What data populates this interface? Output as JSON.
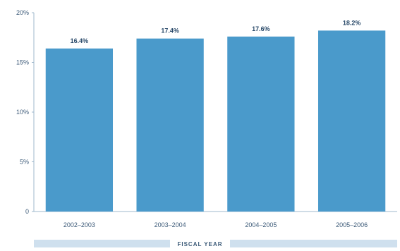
{
  "chart_data": {
    "type": "bar",
    "categories": [
      "2002–2003",
      "2003–2004",
      "2004–2005",
      "2005–2006"
    ],
    "values": [
      16.4,
      17.4,
      17.6,
      18.2
    ],
    "value_labels": [
      "16.4%",
      "17.4%",
      "17.6%",
      "18.2%"
    ],
    "y_ticks": [
      0,
      5,
      10,
      15,
      20
    ],
    "y_tick_labels": [
      "0",
      "5%",
      "10%",
      "15%",
      "20%"
    ],
    "ylim": [
      0,
      20
    ],
    "xlabel": "FISCAL YEAR",
    "ylabel": "",
    "grid": false,
    "bar_color": "#4a9acb",
    "axis_color": "#9fb8cc",
    "band_color": "#cfe0ee"
  }
}
